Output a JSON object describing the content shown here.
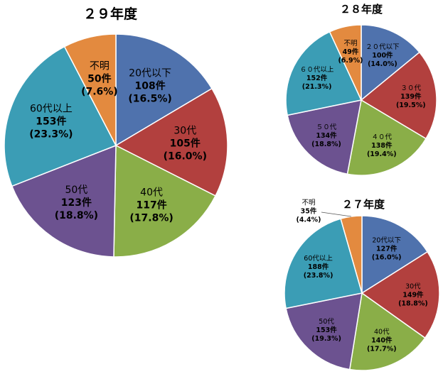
{
  "chart_data": [
    {
      "type": "pie",
      "title": "２９年度",
      "categories": [
        "20代以下",
        "30代",
        "40代",
        "50代",
        "60代以上",
        "不明"
      ],
      "values": [
        108,
        105,
        117,
        123,
        153,
        50
      ],
      "count_labels": [
        "108件",
        "105件",
        "117件",
        "123件",
        "153件",
        "50件"
      ],
      "percent_labels": [
        "(16.5%)",
        "(16.0%)",
        "(17.8%)",
        "(18.8%)",
        "(23.3%)",
        "(7.6%)"
      ],
      "colors": [
        "#4F72AD",
        "#B2403E",
        "#8AAE48",
        "#6C5290",
        "#3B9DB5",
        "#E38A3F"
      ]
    },
    {
      "type": "pie",
      "title": "２８年度",
      "categories": [
        "２０代以下",
        "３０代",
        "４０代",
        "５０代",
        "６０代以上",
        "不明"
      ],
      "values": [
        100,
        139,
        138,
        134,
        152,
        49
      ],
      "count_labels": [
        "100件",
        "139件",
        "138件",
        "134件",
        "152件",
        "49件"
      ],
      "percent_labels": [
        "(14.0%)",
        "(19.5%)",
        "(19.4%)",
        "(18.8%)",
        "(21.3%)",
        "(6.9%)"
      ],
      "colors": [
        "#4F72AD",
        "#B2403E",
        "#8AAE48",
        "#6C5290",
        "#3B9DB5",
        "#E38A3F"
      ]
    },
    {
      "type": "pie",
      "title": "２７年度",
      "categories": [
        "20代以下",
        "30代",
        "40代",
        "50代",
        "60代以上",
        "不明"
      ],
      "values": [
        127,
        149,
        140,
        153,
        188,
        35
      ],
      "count_labels": [
        "127件",
        "149件",
        "140件",
        "153件",
        "188件",
        "35件"
      ],
      "percent_labels": [
        "(16.0%)",
        "(18.8%)",
        "(17.7%)",
        "(19.3%)",
        "(23.8%)",
        "(4.4%)"
      ],
      "colors": [
        "#4F72AD",
        "#B2403E",
        "#8AAE48",
        "#6C5290",
        "#3B9DB5",
        "#E38A3F"
      ]
    }
  ]
}
